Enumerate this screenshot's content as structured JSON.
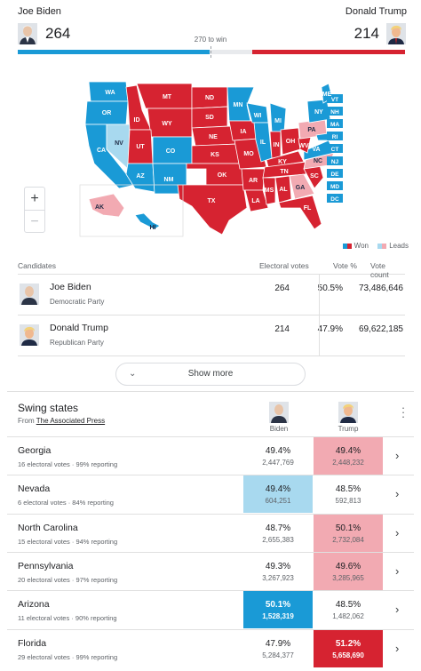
{
  "header": {
    "left_candidate": "Joe Biden",
    "right_candidate": "Donald Trump",
    "left_votes": "264",
    "right_votes": "214",
    "threshold": "270 to win",
    "colors": {
      "dem": "#1a9ad6",
      "rep": "#d62331"
    }
  },
  "map": {
    "states_labels": {
      "WA": "WA",
      "OR": "OR",
      "CA": "CA",
      "NV": "NV",
      "ID": "ID",
      "MT": "MT",
      "WY": "WY",
      "UT": "UT",
      "AZ": "AZ",
      "CO": "CO",
      "NM": "NM",
      "ND": "ND",
      "SD": "SD",
      "NE": "NE",
      "KS": "KS",
      "OK": "OK",
      "TX": "TX",
      "MN": "MN",
      "IA": "IA",
      "MO": "MO",
      "AR": "AR",
      "LA": "LA",
      "WI": "WI",
      "IL": "IL",
      "MI": "MI",
      "IN": "IN",
      "OH": "OH",
      "KY": "KY",
      "TN": "TN",
      "MS": "MS",
      "AL": "AL",
      "GA": "GA",
      "FL": "FL",
      "SC": "SC",
      "NC": "NC",
      "VA": "VA",
      "WV": "WV",
      "PA": "PA",
      "NY": "NY",
      "ME": "ME",
      "AK": "AK",
      "HI": "HI",
      "VT": "VT",
      "NH": "NH",
      "MA": "MA",
      "RI": "RI",
      "CT": "CT",
      "NJ": "NJ",
      "DE": "DE",
      "MD": "MD",
      "DC": "DC"
    },
    "zoom_in": "+",
    "zoom_out": "−",
    "legend_won": "Won",
    "legend_leads": "Leads",
    "colors": {
      "dem_won": "#1a9ad6",
      "rep_won": "#d62331",
      "dem_leads": "#a8d9ef",
      "rep_leads": "#f2aab2"
    }
  },
  "candidates": {
    "headers": {
      "candidates": "Candidates",
      "electoral": "Electoral votes",
      "pct": "Vote %",
      "count": "Vote count"
    },
    "rows": [
      {
        "name": "Joe Biden",
        "party": "Democratic Party",
        "electoral": "264",
        "pct": "50.5%",
        "count": "73,486,646"
      },
      {
        "name": "Donald Trump",
        "party": "Republican Party",
        "electoral": "214",
        "pct": "47.9%",
        "count": "69,622,185"
      }
    ],
    "show_more": "Show more"
  },
  "swing": {
    "title": "Swing states",
    "source_prefix": "From",
    "source": "The Associated Press",
    "col_biden": "Biden",
    "col_trump": "Trump",
    "states": [
      {
        "name": "Georgia",
        "info": "16 electoral votes · 99% reporting",
        "b_pct": "49.4%",
        "b_votes": "2,447,769",
        "t_pct": "49.4%",
        "t_votes": "2,448,232",
        "b_state": "none",
        "t_state": "leads"
      },
      {
        "name": "Nevada",
        "info": "6 electoral votes · 84% reporting",
        "b_pct": "49.4%",
        "b_votes": "604,251",
        "t_pct": "48.5%",
        "t_votes": "592,813",
        "b_state": "leads",
        "t_state": "none"
      },
      {
        "name": "North Carolina",
        "info": "15 electoral votes · 94% reporting",
        "b_pct": "48.7%",
        "b_votes": "2,655,383",
        "t_pct": "50.1%",
        "t_votes": "2,732,084",
        "b_state": "none",
        "t_state": "leads"
      },
      {
        "name": "Pennsylvania",
        "info": "20 electoral votes · 97% reporting",
        "b_pct": "49.3%",
        "b_votes": "3,267,923",
        "t_pct": "49.6%",
        "t_votes": "3,285,965",
        "b_state": "none",
        "t_state": "leads"
      },
      {
        "name": "Arizona",
        "info": "11 electoral votes · 90% reporting",
        "b_pct": "50.1%",
        "b_votes": "1,528,319",
        "t_pct": "48.5%",
        "t_votes": "1,482,062",
        "b_state": "won",
        "t_state": "none"
      },
      {
        "name": "Florida",
        "info": "29 electoral votes · 99% reporting",
        "b_pct": "47.9%",
        "b_votes": "5,284,377",
        "t_pct": "51.2%",
        "t_votes": "5,658,690",
        "b_state": "none",
        "t_state": "won"
      }
    ]
  }
}
